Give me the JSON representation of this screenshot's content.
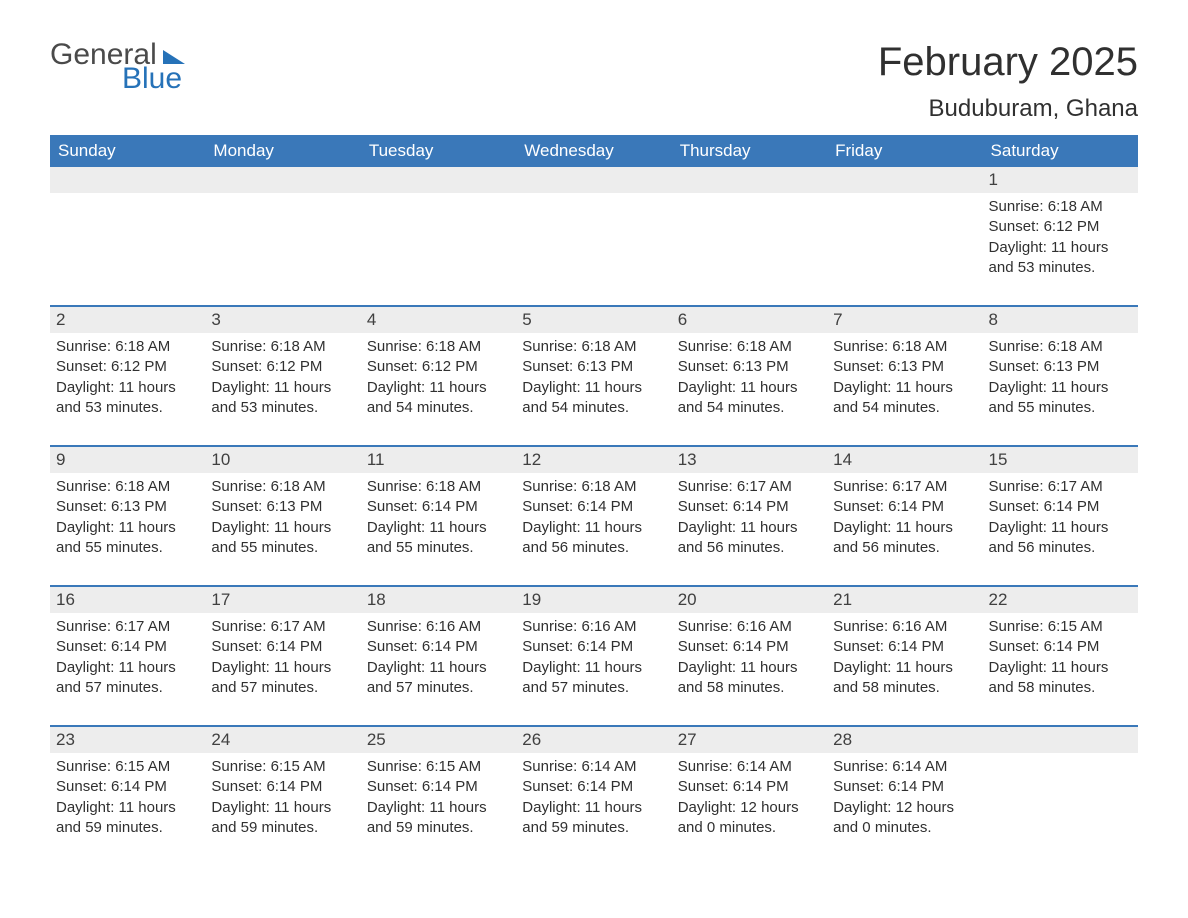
{
  "logo": {
    "text1": "General",
    "text2": "Blue"
  },
  "title": "February 2025",
  "location": "Buduburam, Ghana",
  "colors": {
    "header_bg": "#3a78b9",
    "header_text": "#ffffff",
    "daynum_bg": "#ededed",
    "border": "#3a78b9",
    "text": "#303030",
    "logo_blue": "#2672b8",
    "logo_gray": "#4a4a4a",
    "page_bg": "#ffffff"
  },
  "day_headers": [
    "Sunday",
    "Monday",
    "Tuesday",
    "Wednesday",
    "Thursday",
    "Friday",
    "Saturday"
  ],
  "weeks": [
    [
      {
        "n": "",
        "sunrise": "",
        "sunset": "",
        "daylight": ""
      },
      {
        "n": "",
        "sunrise": "",
        "sunset": "",
        "daylight": ""
      },
      {
        "n": "",
        "sunrise": "",
        "sunset": "",
        "daylight": ""
      },
      {
        "n": "",
        "sunrise": "",
        "sunset": "",
        "daylight": ""
      },
      {
        "n": "",
        "sunrise": "",
        "sunset": "",
        "daylight": ""
      },
      {
        "n": "",
        "sunrise": "",
        "sunset": "",
        "daylight": ""
      },
      {
        "n": "1",
        "sunrise": "Sunrise: 6:18 AM",
        "sunset": "Sunset: 6:12 PM",
        "daylight": "Daylight: 11 hours and 53 minutes."
      }
    ],
    [
      {
        "n": "2",
        "sunrise": "Sunrise: 6:18 AM",
        "sunset": "Sunset: 6:12 PM",
        "daylight": "Daylight: 11 hours and 53 minutes."
      },
      {
        "n": "3",
        "sunrise": "Sunrise: 6:18 AM",
        "sunset": "Sunset: 6:12 PM",
        "daylight": "Daylight: 11 hours and 53 minutes."
      },
      {
        "n": "4",
        "sunrise": "Sunrise: 6:18 AM",
        "sunset": "Sunset: 6:12 PM",
        "daylight": "Daylight: 11 hours and 54 minutes."
      },
      {
        "n": "5",
        "sunrise": "Sunrise: 6:18 AM",
        "sunset": "Sunset: 6:13 PM",
        "daylight": "Daylight: 11 hours and 54 minutes."
      },
      {
        "n": "6",
        "sunrise": "Sunrise: 6:18 AM",
        "sunset": "Sunset: 6:13 PM",
        "daylight": "Daylight: 11 hours and 54 minutes."
      },
      {
        "n": "7",
        "sunrise": "Sunrise: 6:18 AM",
        "sunset": "Sunset: 6:13 PM",
        "daylight": "Daylight: 11 hours and 54 minutes."
      },
      {
        "n": "8",
        "sunrise": "Sunrise: 6:18 AM",
        "sunset": "Sunset: 6:13 PM",
        "daylight": "Daylight: 11 hours and 55 minutes."
      }
    ],
    [
      {
        "n": "9",
        "sunrise": "Sunrise: 6:18 AM",
        "sunset": "Sunset: 6:13 PM",
        "daylight": "Daylight: 11 hours and 55 minutes."
      },
      {
        "n": "10",
        "sunrise": "Sunrise: 6:18 AM",
        "sunset": "Sunset: 6:13 PM",
        "daylight": "Daylight: 11 hours and 55 minutes."
      },
      {
        "n": "11",
        "sunrise": "Sunrise: 6:18 AM",
        "sunset": "Sunset: 6:14 PM",
        "daylight": "Daylight: 11 hours and 55 minutes."
      },
      {
        "n": "12",
        "sunrise": "Sunrise: 6:18 AM",
        "sunset": "Sunset: 6:14 PM",
        "daylight": "Daylight: 11 hours and 56 minutes."
      },
      {
        "n": "13",
        "sunrise": "Sunrise: 6:17 AM",
        "sunset": "Sunset: 6:14 PM",
        "daylight": "Daylight: 11 hours and 56 minutes."
      },
      {
        "n": "14",
        "sunrise": "Sunrise: 6:17 AM",
        "sunset": "Sunset: 6:14 PM",
        "daylight": "Daylight: 11 hours and 56 minutes."
      },
      {
        "n": "15",
        "sunrise": "Sunrise: 6:17 AM",
        "sunset": "Sunset: 6:14 PM",
        "daylight": "Daylight: 11 hours and 56 minutes."
      }
    ],
    [
      {
        "n": "16",
        "sunrise": "Sunrise: 6:17 AM",
        "sunset": "Sunset: 6:14 PM",
        "daylight": "Daylight: 11 hours and 57 minutes."
      },
      {
        "n": "17",
        "sunrise": "Sunrise: 6:17 AM",
        "sunset": "Sunset: 6:14 PM",
        "daylight": "Daylight: 11 hours and 57 minutes."
      },
      {
        "n": "18",
        "sunrise": "Sunrise: 6:16 AM",
        "sunset": "Sunset: 6:14 PM",
        "daylight": "Daylight: 11 hours and 57 minutes."
      },
      {
        "n": "19",
        "sunrise": "Sunrise: 6:16 AM",
        "sunset": "Sunset: 6:14 PM",
        "daylight": "Daylight: 11 hours and 57 minutes."
      },
      {
        "n": "20",
        "sunrise": "Sunrise: 6:16 AM",
        "sunset": "Sunset: 6:14 PM",
        "daylight": "Daylight: 11 hours and 58 minutes."
      },
      {
        "n": "21",
        "sunrise": "Sunrise: 6:16 AM",
        "sunset": "Sunset: 6:14 PM",
        "daylight": "Daylight: 11 hours and 58 minutes."
      },
      {
        "n": "22",
        "sunrise": "Sunrise: 6:15 AM",
        "sunset": "Sunset: 6:14 PM",
        "daylight": "Daylight: 11 hours and 58 minutes."
      }
    ],
    [
      {
        "n": "23",
        "sunrise": "Sunrise: 6:15 AM",
        "sunset": "Sunset: 6:14 PM",
        "daylight": "Daylight: 11 hours and 59 minutes."
      },
      {
        "n": "24",
        "sunrise": "Sunrise: 6:15 AM",
        "sunset": "Sunset: 6:14 PM",
        "daylight": "Daylight: 11 hours and 59 minutes."
      },
      {
        "n": "25",
        "sunrise": "Sunrise: 6:15 AM",
        "sunset": "Sunset: 6:14 PM",
        "daylight": "Daylight: 11 hours and 59 minutes."
      },
      {
        "n": "26",
        "sunrise": "Sunrise: 6:14 AM",
        "sunset": "Sunset: 6:14 PM",
        "daylight": "Daylight: 11 hours and 59 minutes."
      },
      {
        "n": "27",
        "sunrise": "Sunrise: 6:14 AM",
        "sunset": "Sunset: 6:14 PM",
        "daylight": "Daylight: 12 hours and 0 minutes."
      },
      {
        "n": "28",
        "sunrise": "Sunrise: 6:14 AM",
        "sunset": "Sunset: 6:14 PM",
        "daylight": "Daylight: 12 hours and 0 minutes."
      },
      {
        "n": "",
        "sunrise": "",
        "sunset": "",
        "daylight": ""
      }
    ]
  ]
}
